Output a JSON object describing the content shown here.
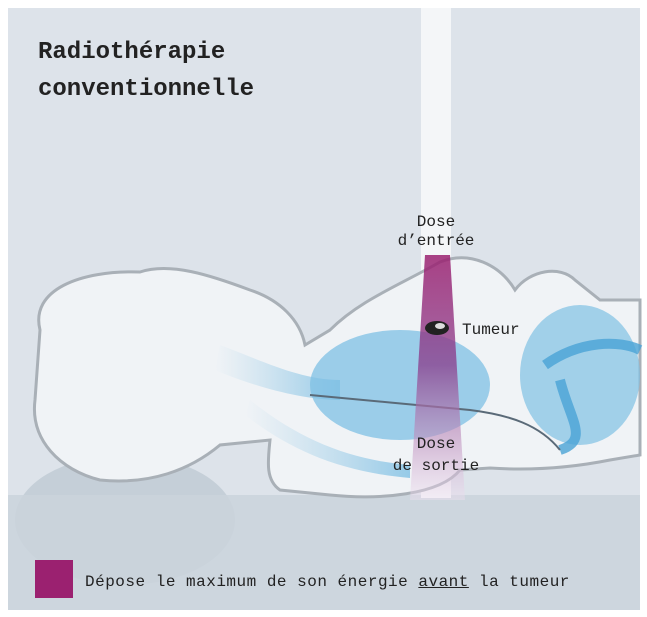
{
  "title": {
    "lines": [
      "Radiothérapie",
      "conventionnelle"
    ]
  },
  "labels": {
    "entry_dose": [
      "Dose",
      "d’entrée"
    ],
    "tumor": "Tumeur",
    "exit_dose": [
      "Dose",
      "de sortie"
    ]
  },
  "legend": {
    "text_before": "Dépose le maximum de son énergie ",
    "text_emphasis": "avant",
    "text_after": " la tumeur"
  }
}
